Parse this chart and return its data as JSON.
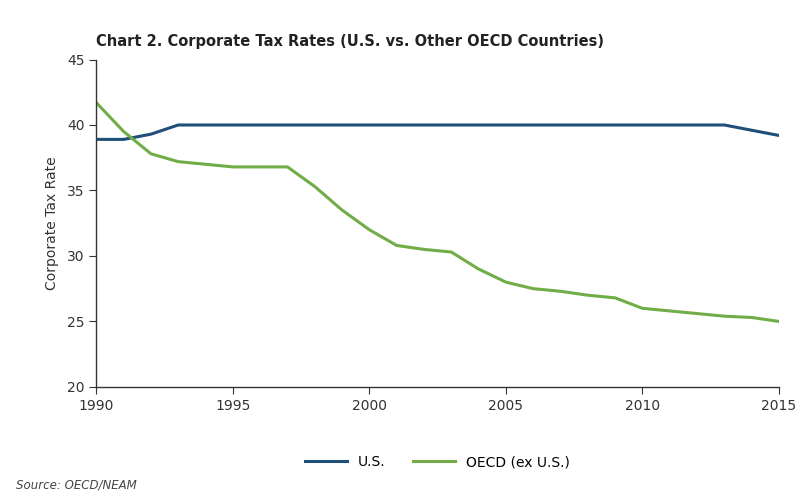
{
  "title": "Chart 2. Corporate Tax Rates (U.S. vs. Other OECD Countries)",
  "ylabel": "Corporate Tax Rate",
  "source": "Source: OECD/NEAM",
  "ylim": [
    20,
    45
  ],
  "yticks": [
    20,
    25,
    30,
    35,
    40,
    45
  ],
  "xlim": [
    1990,
    2015
  ],
  "xticks": [
    1990,
    1995,
    2000,
    2005,
    2010,
    2015
  ],
  "us_color": "#1f4e79",
  "oecd_color": "#70ad47",
  "us_label": "U.S.",
  "oecd_label": "OECD (ex U.S.)",
  "line_width": 2.2,
  "background_color": "#ffffff",
  "us_data": {
    "years": [
      1990,
      1991,
      1992,
      1993,
      1994,
      1995,
      1996,
      1997,
      1998,
      1999,
      2000,
      2001,
      2002,
      2003,
      2004,
      2005,
      2006,
      2007,
      2008,
      2009,
      2010,
      2011,
      2012,
      2013,
      2014,
      2015
    ],
    "values": [
      38.9,
      38.9,
      39.3,
      40.0,
      40.0,
      40.0,
      40.0,
      40.0,
      40.0,
      40.0,
      40.0,
      40.0,
      40.0,
      40.0,
      40.0,
      40.0,
      40.0,
      40.0,
      40.0,
      40.0,
      40.0,
      40.0,
      40.0,
      40.0,
      39.6,
      39.2
    ]
  },
  "oecd_data": {
    "years": [
      1990,
      1991,
      1992,
      1993,
      1994,
      1995,
      1996,
      1997,
      1998,
      1999,
      2000,
      2001,
      2002,
      2003,
      2004,
      2005,
      2006,
      2007,
      2008,
      2009,
      2010,
      2011,
      2012,
      2013,
      2014,
      2015
    ],
    "values": [
      41.7,
      39.5,
      37.8,
      37.2,
      37.0,
      36.8,
      36.8,
      36.8,
      35.3,
      33.5,
      32.0,
      30.8,
      30.5,
      30.3,
      29.0,
      28.0,
      27.5,
      27.3,
      27.0,
      26.8,
      26.0,
      25.8,
      25.6,
      25.4,
      25.3,
      25.0
    ]
  }
}
